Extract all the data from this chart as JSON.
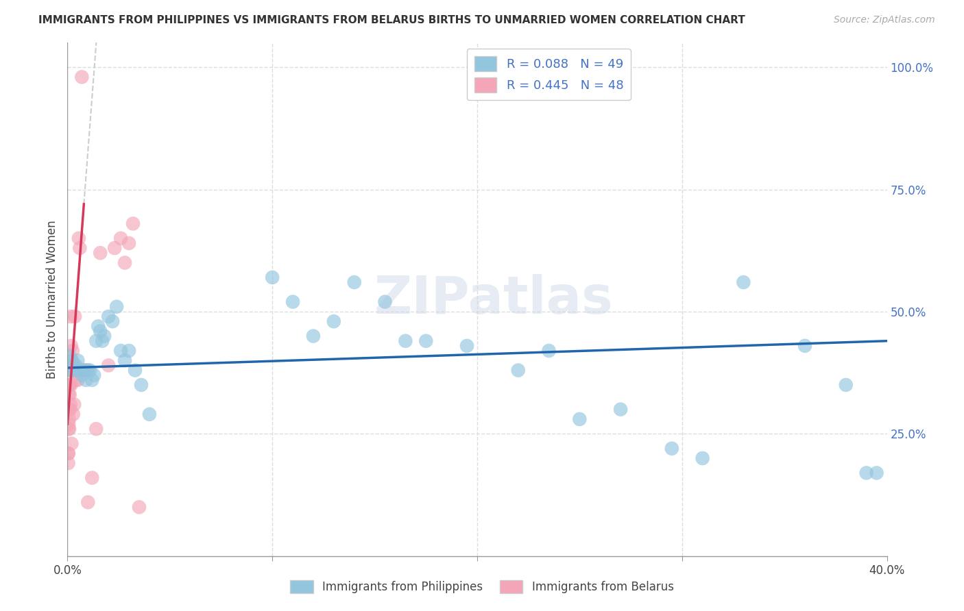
{
  "title": "IMMIGRANTS FROM PHILIPPINES VS IMMIGRANTS FROM BELARUS BIRTHS TO UNMARRIED WOMEN CORRELATION CHART",
  "source": "Source: ZipAtlas.com",
  "ylabel": "Births to Unmarried Women",
  "legend_label1": "R = 0.088   N = 49",
  "legend_label2": "R = 0.445   N = 48",
  "series1_label": "Immigrants from Philippines",
  "series2_label": "Immigrants from Belarus",
  "color1": "#92c5de",
  "color2": "#f4a6b8",
  "line_color1": "#2166ac",
  "line_color2": "#d6385a",
  "dash_color": "#cccccc",
  "watermark": "ZIPatlas",
  "philippines_x": [
    0.001,
    0.001,
    0.002,
    0.002,
    0.003,
    0.004,
    0.005,
    0.006,
    0.007,
    0.008,
    0.009,
    0.01,
    0.011,
    0.012,
    0.013,
    0.014,
    0.015,
    0.016,
    0.017,
    0.018,
    0.02,
    0.022,
    0.024,
    0.026,
    0.028,
    0.03,
    0.033,
    0.036,
    0.04,
    0.1,
    0.11,
    0.12,
    0.13,
    0.14,
    0.155,
    0.165,
    0.175,
    0.195,
    0.22,
    0.235,
    0.25,
    0.27,
    0.295,
    0.31,
    0.33,
    0.36,
    0.38,
    0.39,
    0.395
  ],
  "philippines_y": [
    0.39,
    0.41,
    0.38,
    0.4,
    0.38,
    0.39,
    0.4,
    0.38,
    0.37,
    0.38,
    0.36,
    0.38,
    0.38,
    0.36,
    0.37,
    0.44,
    0.47,
    0.46,
    0.44,
    0.45,
    0.49,
    0.48,
    0.51,
    0.42,
    0.4,
    0.42,
    0.38,
    0.35,
    0.29,
    0.57,
    0.52,
    0.45,
    0.48,
    0.56,
    0.52,
    0.44,
    0.44,
    0.43,
    0.38,
    0.42,
    0.28,
    0.3,
    0.22,
    0.2,
    0.56,
    0.43,
    0.35,
    0.17,
    0.17
  ],
  "belarus_x": [
    0.0002,
    0.0003,
    0.0004,
    0.0004,
    0.0005,
    0.0005,
    0.0006,
    0.0006,
    0.0007,
    0.0007,
    0.0008,
    0.0008,
    0.0009,
    0.001,
    0.0011,
    0.0012,
    0.0013,
    0.0014,
    0.0015,
    0.0016,
    0.0017,
    0.0018,
    0.002,
    0.0022,
    0.0025,
    0.0028,
    0.003,
    0.0033,
    0.0036,
    0.004,
    0.0043,
    0.005,
    0.0055,
    0.006,
    0.007,
    0.008,
    0.009,
    0.01,
    0.012,
    0.014,
    0.016,
    0.02,
    0.023,
    0.026,
    0.028,
    0.03,
    0.032,
    0.035
  ],
  "belarus_y": [
    0.39,
    0.21,
    0.35,
    0.19,
    0.21,
    0.26,
    0.33,
    0.27,
    0.39,
    0.3,
    0.35,
    0.28,
    0.26,
    0.35,
    0.33,
    0.38,
    0.3,
    0.31,
    0.38,
    0.49,
    0.35,
    0.43,
    0.23,
    0.4,
    0.42,
    0.29,
    0.39,
    0.31,
    0.49,
    0.36,
    0.38,
    0.36,
    0.65,
    0.63,
    0.98,
    0.38,
    0.38,
    0.11,
    0.16,
    0.26,
    0.62,
    0.39,
    0.63,
    0.65,
    0.6,
    0.64,
    0.68,
    0.1
  ],
  "xlim": [
    0.0,
    0.4
  ],
  "ylim": [
    0.0,
    1.05
  ],
  "xticks": [
    0.0,
    0.1,
    0.2,
    0.3,
    0.4
  ],
  "xtick_labels": [
    "0.0%",
    "",
    "",
    "",
    "40.0%"
  ],
  "yticks": [
    0.0,
    0.25,
    0.5,
    0.75,
    1.0
  ],
  "ytick_labels": [
    "",
    "25.0%",
    "50.0%",
    "75.0%",
    "100.0%"
  ],
  "title_fontsize": 11,
  "axis_label_fontsize": 12,
  "tick_fontsize": 12,
  "legend_fontsize": 13
}
